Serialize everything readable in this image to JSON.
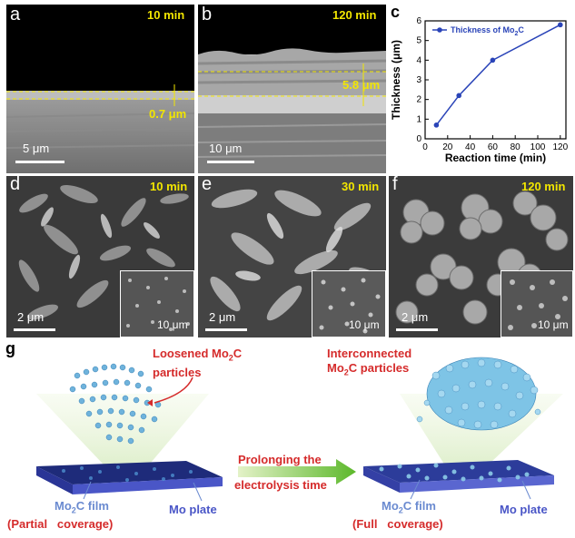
{
  "panel_a": {
    "label": "a",
    "time": "10 min",
    "thickness": "0.7 μm",
    "scale": "5 μm"
  },
  "panel_b": {
    "label": "b",
    "time": "120 min",
    "thickness": "5.8 μm",
    "scale": "10 μm"
  },
  "panel_c": {
    "label": "c"
  },
  "panel_d": {
    "label": "d",
    "time": "10 min",
    "scale": "2 μm",
    "inset_scale": "10 μm"
  },
  "panel_e": {
    "label": "e",
    "time": "30 min",
    "scale": "2 μm",
    "inset_scale": "10 μm"
  },
  "panel_f": {
    "label": "f",
    "time": "120 min",
    "scale": "2 μm",
    "inset_scale": "10 μm"
  },
  "panel_g": {
    "label": "g",
    "left_particles_line1": "Loosened Mo",
    "left_particles_sub": "2",
    "left_particles_line1_end": "C",
    "left_particles_line2": "particles",
    "right_particles_line1": "Interconnected",
    "right_particles_line2": "Mo",
    "right_particles_sub": "2",
    "right_particles_line2_end": "C particles",
    "arrow_line1": "Prolonging the",
    "arrow_line2": "electrolysis time",
    "left_film": "Mo",
    "left_film_sub": "2",
    "left_film_end": "C film",
    "left_coverage": "(Partial   coverage)",
    "left_plate": "Mo plate",
    "right_film": "Mo",
    "right_film_sub": "2",
    "right_film_end": "C film",
    "right_coverage": "(Full   coverage)",
    "right_plate": "Mo plate"
  },
  "chart_data": {
    "type": "line",
    "legend_label": "Thickness of Mo",
    "legend_sub": "2",
    "legend_end": "C",
    "xlabel": "Reaction time (min)",
    "ylabel": "Thickness (μm)",
    "xlim": [
      0,
      125
    ],
    "ylim": [
      0,
      6
    ],
    "xticks": [
      "0",
      "20",
      "40",
      "60",
      "80",
      "100",
      "120"
    ],
    "yticks": [
      "0",
      "1",
      "2",
      "3",
      "4",
      "5",
      "6"
    ],
    "x": [
      10,
      30,
      60,
      120
    ],
    "y": [
      0.7,
      2.2,
      4.0,
      5.8
    ],
    "color": "#2a44b8"
  }
}
